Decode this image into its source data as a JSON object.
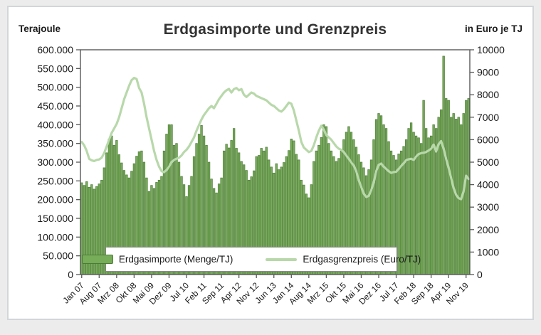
{
  "title": "Erdgasimporte und Grenzpreis",
  "left_axis": {
    "unit_label": "Terajoule",
    "tick_values": [
      0,
      50000,
      100000,
      150000,
      200000,
      250000,
      300000,
      350000,
      400000,
      450000,
      500000,
      550000,
      600000
    ],
    "tick_labels": [
      "0",
      "50.000",
      "100.000",
      "150.000",
      "200.000",
      "250.000",
      "300.000",
      "350.000",
      "400.000",
      "450.000",
      "500.000",
      "550.000",
      "600.000"
    ],
    "max": 600000
  },
  "right_axis": {
    "unit_label": "in Euro je TJ",
    "tick_values": [
      0,
      1000,
      2000,
      3000,
      4000,
      5000,
      6000,
      7000,
      8000,
      9000,
      10000
    ],
    "tick_labels": [
      "0",
      "1000",
      "2000",
      "3000",
      "4000",
      "5000",
      "6000",
      "7000",
      "8000",
      "9000",
      "10000"
    ],
    "max": 10000
  },
  "x_axis": {
    "tick_labels": [
      "Jan 07",
      "Aug 07",
      "Mrz 08",
      "Okt 08",
      "Mai 09",
      "Dez 09",
      "Jul 10",
      "Feb 11",
      "Sep 11",
      "Apr 12",
      "Nov 12",
      "Jun 13",
      "Jan 14",
      "Aug 14",
      "Mrz 15",
      "Okt 15",
      "Mai 16",
      "Dez 16",
      "Jul 17",
      "Feb 18",
      "Sep 18",
      "Apr 19",
      "Nov 19"
    ],
    "tick_month_indices": [
      0,
      7,
      14,
      21,
      28,
      35,
      42,
      49,
      56,
      63,
      70,
      77,
      84,
      91,
      98,
      105,
      112,
      119,
      126,
      133,
      140,
      147,
      154
    ]
  },
  "legend": {
    "imports_label": "Erdgasimporte (Menge/TJ)",
    "price_label": "Erdgasgrenzpreis (Euro/TJ)"
  },
  "colors": {
    "bar_fill": "#77ac58",
    "bar_stroke": "#4c7a38",
    "line": "#b8d8aa",
    "axis": "#595959",
    "title_text": "#333333",
    "tick_text": "#1a1a1a"
  },
  "chart_data": {
    "type": "bar",
    "combo": "monthly bars (left axis) + line (right axis)",
    "x_start": "Jan 2007",
    "x_end": "Dez 2019",
    "months_count": 156,
    "xlabel": "",
    "title": "Erdgasimporte und Grenzpreis",
    "left_ylim": [
      0,
      600000
    ],
    "right_ylim": [
      0,
      10000
    ],
    "grid": false,
    "legend_position": "bottom-inside",
    "series": [
      {
        "name": "Erdgasimporte (Menge/TJ)",
        "type": "bar",
        "axis": "left",
        "unit": "TJ",
        "values": [
          245000,
          238000,
          248000,
          233000,
          240000,
          228000,
          235000,
          242000,
          252000,
          285000,
          325000,
          362000,
          370000,
          345000,
          358000,
          320000,
          298000,
          278000,
          266000,
          258000,
          276000,
          296000,
          316000,
          328000,
          330000,
          300000,
          258000,
          222000,
          238000,
          230000,
          246000,
          252000,
          262000,
          330000,
          375000,
          400000,
          400000,
          345000,
          350000,
          300000,
          262000,
          240000,
          208000,
          238000,
          262000,
          315000,
          350000,
          375000,
          398000,
          370000,
          345000,
          300000,
          255000,
          230000,
          218000,
          242000,
          258000,
          330000,
          348000,
          338000,
          358000,
          390000,
          337000,
          325000,
          302000,
          293000,
          278000,
          252000,
          261000,
          277000,
          315000,
          318000,
          337000,
          330000,
          340000,
          306000,
          287000,
          271000,
          296000,
          280000,
          287000,
          299000,
          315000,
          331000,
          362000,
          357000,
          321000,
          306000,
          252000,
          239000,
          215000,
          205000,
          240000,
          302000,
          330000,
          345000,
          366000,
          400000,
          395000,
          350000,
          330000,
          315000,
          302000,
          310000,
          330000,
          360000,
          380000,
          395000,
          380000,
          360000,
          340000,
          320000,
          300000,
          285000,
          264000,
          280000,
          306000,
          360000,
          414000,
          430000,
          424000,
          400000,
          390000,
          355000,
          330000,
          318000,
          306000,
          322000,
          330000,
          342000,
          360000,
          390000,
          405000,
          380000,
          370000,
          365000,
          350000,
          465000,
          390000,
          365000,
          370000,
          400000,
          390000,
          420000,
          440000,
          583000,
          470000,
          465000,
          420000,
          430000,
          415000,
          420000,
          400000,
          430000,
          465000,
          470000
        ]
      },
      {
        "name": "Erdgasgrenzpreis (Euro/TJ)",
        "type": "line",
        "axis": "right",
        "unit": "Euro/TJ",
        "values": [
          5900,
          5750,
          5500,
          5150,
          5080,
          5050,
          5100,
          5120,
          5200,
          5400,
          5700,
          6000,
          6300,
          6500,
          6700,
          7000,
          7400,
          7800,
          8100,
          8400,
          8650,
          8750,
          8700,
          8300,
          8100,
          7600,
          7000,
          6500,
          6000,
          5500,
          5100,
          4800,
          4600,
          4550,
          4650,
          4800,
          5000,
          5100,
          5150,
          5200,
          5300,
          5450,
          5550,
          5700,
          5900,
          6100,
          6400,
          6650,
          6900,
          7100,
          7250,
          7400,
          7500,
          7400,
          7600,
          7800,
          7950,
          8100,
          8200,
          8260,
          8100,
          8250,
          8300,
          8200,
          8250,
          8000,
          7900,
          8000,
          8100,
          8050,
          7950,
          7900,
          7850,
          7800,
          7750,
          7650,
          7550,
          7500,
          7400,
          7300,
          7250,
          7350,
          7500,
          7650,
          7600,
          7300,
          6850,
          6400,
          5900,
          5650,
          5550,
          5450,
          5500,
          5750,
          6100,
          6400,
          6620,
          6450,
          6200,
          6100,
          6000,
          5850,
          5700,
          5600,
          5550,
          5450,
          5300,
          5150,
          4990,
          4850,
          4600,
          4200,
          3900,
          3600,
          3450,
          3500,
          3750,
          4100,
          4600,
          4880,
          4940,
          4800,
          4700,
          4600,
          4520,
          4560,
          4570,
          4700,
          4830,
          4950,
          5090,
          5130,
          5150,
          5100,
          5250,
          5360,
          5400,
          5420,
          5450,
          5520,
          5600,
          5780,
          5470,
          5800,
          5940,
          5600,
          5150,
          4750,
          4300,
          3850,
          3550,
          3400,
          3350,
          3700,
          4400,
          4250
        ]
      }
    ]
  }
}
